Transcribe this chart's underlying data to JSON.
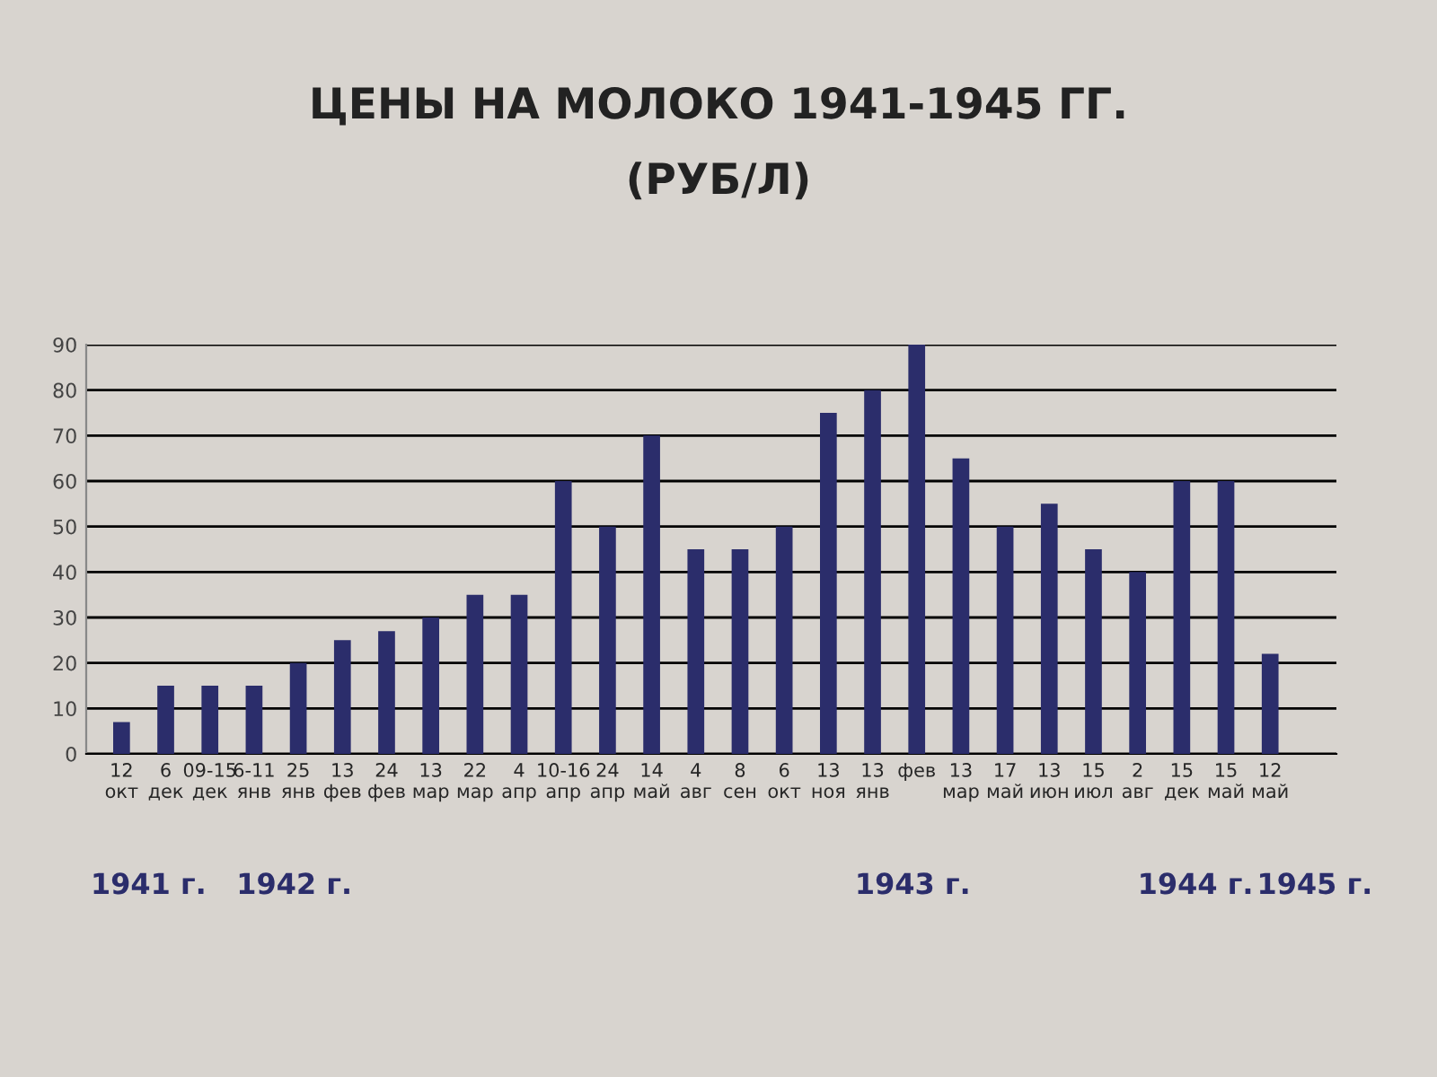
{
  "chart_data": {
    "type": "bar",
    "title": "ЦЕНЫ НА МОЛОКО 1941-1945 ГГ.",
    "subtitle": "(РУБ/Л)",
    "categories": [
      "12\nокт",
      "6\nдек",
      "09-15\nдек",
      "6-11\nянв",
      "25\nянв",
      "13\nфев",
      "24\nфев",
      "13\nмар",
      "22\nмар",
      "4\nапр",
      "10-16\nапр",
      "24\nапр",
      "14\nмай",
      "4\nавг",
      "8\nсен",
      "6\nокт",
      "13\nноя",
      "13\nянв",
      "фев",
      "13\nмар",
      "17\nмай",
      "13\nиюн",
      "15\nиюл",
      "2\nавг",
      "15\nдек",
      "15\nмай",
      "12\nмай"
    ],
    "values": [
      7,
      15,
      15,
      15,
      20,
      25,
      27,
      30,
      35,
      35,
      60,
      50,
      70,
      45,
      45,
      50,
      75,
      80,
      90,
      65,
      50,
      55,
      45,
      40,
      60,
      60,
      22
    ],
    "color": "#2b2d6b",
    "ylim": [
      0,
      90
    ],
    "yticks": [
      0,
      10,
      20,
      30,
      40,
      50,
      60,
      70,
      80,
      90
    ],
    "grid": "y",
    "legend": false,
    "annotations": [
      "1941 г.",
      "1942 г.",
      "1943 г.",
      "1944 г.",
      "1945 г."
    ]
  }
}
